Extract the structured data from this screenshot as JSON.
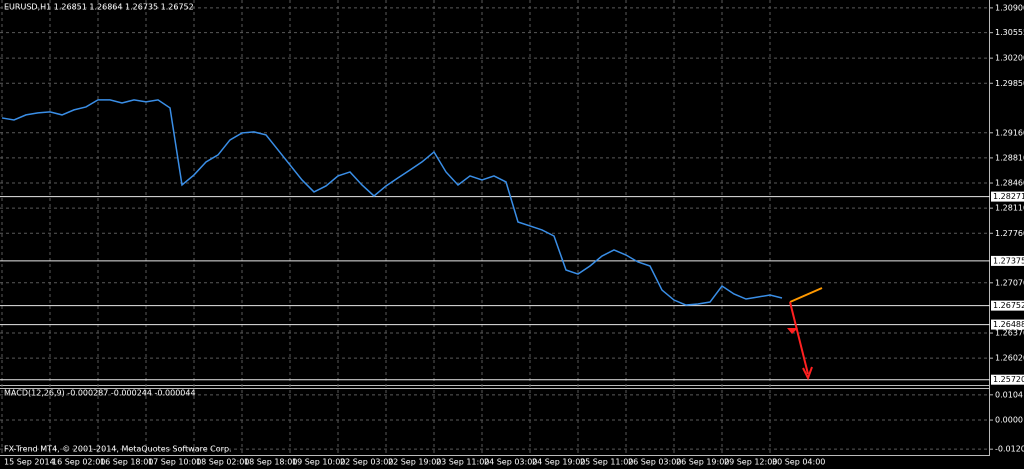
{
  "chart_data": [
    {
      "type": "line",
      "title": "EURUSD,H1  1.26851 1.26864 1.26735 1.26752",
      "footer": "FX-Trend MT4, © 2001-2014, MetaQuotes Software Corp.",
      "categories": [
        "15 Sep 2014",
        null,
        null,
        null,
        "16 Sep 02:00",
        null,
        null,
        null,
        "16 Sep 18:00",
        null,
        null,
        null,
        "17 Sep 10:00",
        null,
        null,
        null,
        "18 Sep 02:00",
        null,
        null,
        null,
        "18 Sep 18:00",
        null,
        null,
        null,
        "19 Sep 10:00",
        null,
        null,
        null,
        "22 Sep 03:00",
        null,
        null,
        null,
        "22 Sep 19:00",
        null,
        null,
        null,
        "23 Sep 11:00",
        null,
        null,
        null,
        "24 Sep 03:00",
        null,
        null,
        null,
        "24 Sep 19:00",
        null,
        null,
        null,
        "25 Sep 11:00",
        null,
        null,
        null,
        "26 Sep 03:00",
        null,
        null,
        null,
        "26 Sep 19:00",
        null,
        null,
        null,
        "29 Sep 12:00",
        null,
        null,
        null,
        "30 Sep 04:00",
        null
      ],
      "series": [
        {
          "name": "EURUSD,H1",
          "color": "#3a8ee6",
          "values": [
            1.29367,
            1.29339,
            1.29409,
            1.29437,
            1.29451,
            1.29409,
            1.29479,
            1.2952,
            1.29618,
            1.29618,
            1.29576,
            1.29618,
            1.2959,
            1.29618,
            1.29507,
            1.28433,
            1.28573,
            1.28754,
            1.28851,
            1.2906,
            1.29158,
            1.29172,
            1.2913,
            1.28921,
            1.28712,
            1.28503,
            1.28336,
            1.28419,
            1.28559,
            1.28614,
            1.28433,
            1.2828,
            1.28419,
            1.28531,
            1.28642,
            1.28754,
            1.28893,
            1.28614,
            1.28433,
            1.28559,
            1.28503,
            1.28559,
            1.28475,
            1.27917,
            1.27862,
            1.27806,
            1.27722,
            1.27248,
            1.27192,
            1.27304,
            1.27443,
            1.27527,
            1.27457,
            1.2736,
            1.27304,
            1.26969,
            1.2683,
            1.2676,
            1.26774,
            1.26802,
            1.27025,
            1.26914,
            1.26844,
            1.26872,
            1.269,
            1.26858
          ]
        }
      ],
      "ylim": [
        1.2566,
        1.3101
      ],
      "yticks": [
        {
          "value": 1.309,
          "label": "1.30900"
        },
        1.30555,
        {
          "value": 1.302,
          "label": "1.30200"
        },
        {
          "value": 1.2985,
          "label": "1.29850"
        },
        {
          "value": 1.2916,
          "label": "1.29160"
        },
        {
          "value": 1.2881,
          "label": "1.28810"
        },
        {
          "value": 1.2846,
          "label": "1.28460"
        },
        {
          "value": 1.2811,
          "label": "1.28110"
        },
        {
          "value": 1.2776,
          "label": "1.27760"
        },
        {
          "value": 1.2707,
          "label": "1.27070"
        },
        {
          "value": 1.2637,
          "label": "1.26370"
        },
        {
          "value": 1.2602,
          "label": "1.26020"
        }
      ],
      "levels": [
        1.28271,
        1.27375,
        1.26752,
        1.26488,
        {
          "value": 1.2572,
          "label": "1.25720"
        }
      ],
      "grid": true
    },
    {
      "type": "macd",
      "title": "MACD(12,26,9) -0.000287 -0.000244 -0.000044",
      "ylim": [
        -0.0144,
        0.0128
      ],
      "yticks": [
        0.0104,
        {
          "value": 0,
          "label": "0.0000"
        },
        {
          "value": -0.012,
          "label": "-0.0120"
        }
      ]
    }
  ]
}
